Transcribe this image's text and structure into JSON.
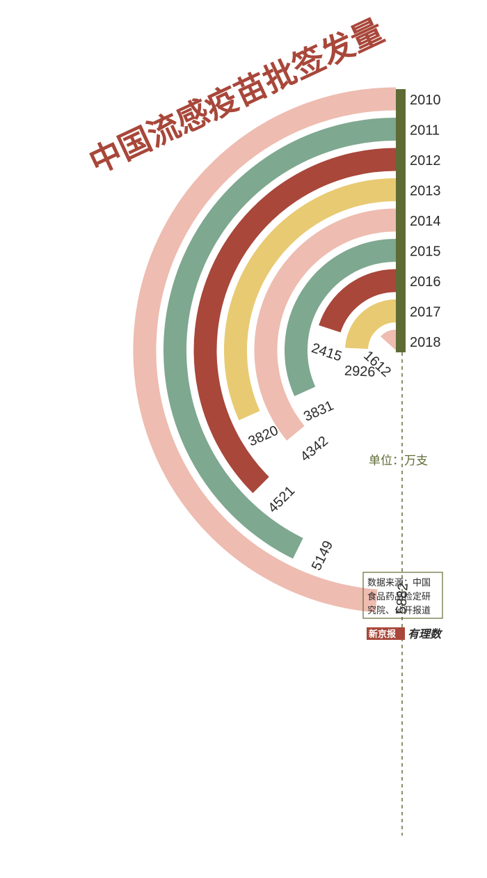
{
  "chart_data": {
    "type": "radial-bar",
    "title": "中国流感疫苗批签发量",
    "unit_label": "单位：万支",
    "source": [
      "数据来源：中国",
      "食品药品检定研",
      "究院、公开报道"
    ],
    "brand": {
      "name": "新京报",
      "script": "有理数"
    },
    "categories": [
      "2010",
      "2011",
      "2012",
      "2013",
      "2014",
      "2015",
      "2016",
      "2017",
      "2018"
    ],
    "values": [
      5882,
      5149,
      4521,
      3820,
      4342,
      3831,
      2415,
      2926,
      1612
    ],
    "value_labels": [
      "5882",
      "5149",
      "4521",
      "3820",
      "4342",
      "3831",
      "2415",
      "2926",
      "1612"
    ],
    "colors": [
      "#eebcb0",
      "#7ea88f",
      "#a8473a",
      "#e8ca72",
      "#eebcb0",
      "#7ea88f",
      "#a8473a",
      "#e8ca72",
      "#eebcb0"
    ],
    "axis_color": "#5e6b35"
  }
}
